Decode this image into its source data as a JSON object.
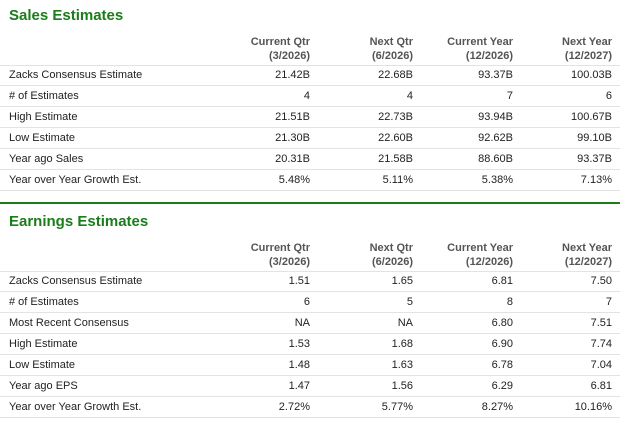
{
  "sections": [
    {
      "title": "Sales Estimates",
      "columns": [
        [
          "Current Qtr",
          "(3/2026)"
        ],
        [
          "Next Qtr",
          "(6/2026)"
        ],
        [
          "Current Year",
          "(12/2026)"
        ],
        [
          "Next Year",
          "(12/2027)"
        ]
      ],
      "rows": [
        [
          "Zacks Consensus Estimate",
          "21.42B",
          "22.68B",
          "93.37B",
          "100.03B"
        ],
        [
          "# of Estimates",
          "4",
          "4",
          "7",
          "6"
        ],
        [
          "High Estimate",
          "21.51B",
          "22.73B",
          "93.94B",
          "100.67B"
        ],
        [
          "Low Estimate",
          "21.30B",
          "22.60B",
          "92.62B",
          "99.10B"
        ],
        [
          "Year ago Sales",
          "20.31B",
          "21.58B",
          "88.60B",
          "93.37B"
        ],
        [
          "Year over Year Growth Est.",
          "5.48%",
          "5.11%",
          "5.38%",
          "7.13%"
        ]
      ]
    },
    {
      "title": "Earnings Estimates",
      "columns": [
        [
          "Current Qtr",
          "(3/2026)"
        ],
        [
          "Next Qtr",
          "(6/2026)"
        ],
        [
          "Current Year",
          "(12/2026)"
        ],
        [
          "Next Year",
          "(12/2027)"
        ]
      ],
      "rows": [
        [
          "Zacks Consensus Estimate",
          "1.51",
          "1.65",
          "6.81",
          "7.50"
        ],
        [
          "# of Estimates",
          "6",
          "5",
          "8",
          "7"
        ],
        [
          "Most Recent Consensus",
          "NA",
          "NA",
          "6.80",
          "7.51"
        ],
        [
          "High Estimate",
          "1.53",
          "1.68",
          "6.90",
          "7.74"
        ],
        [
          "Low Estimate",
          "1.48",
          "1.63",
          "6.78",
          "7.04"
        ],
        [
          "Year ago EPS",
          "1.47",
          "1.56",
          "6.29",
          "6.81"
        ],
        [
          "Year over Year Growth Est.",
          "2.72%",
          "5.77%",
          "8.27%",
          "10.16%"
        ]
      ]
    }
  ]
}
